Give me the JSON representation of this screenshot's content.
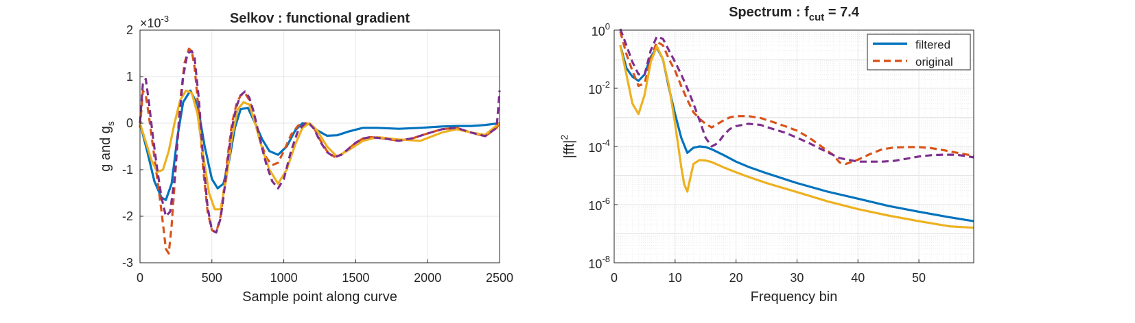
{
  "colors": {
    "blue": "#0072BD",
    "orange": "#D95319",
    "yellow": "#EDB120",
    "purple": "#7E2F8E",
    "grid": "#e6e6e6",
    "axis": "#262626"
  },
  "chart_data": [
    {
      "type": "line",
      "title": "Selkov : functional gradient",
      "xlabel": "Sample point along curve",
      "ylabel_main": "g and g",
      "ylabel_sub": "s",
      "exponent_base": "×10",
      "exponent_power": "-3",
      "xlim": [
        0,
        2500
      ],
      "ylim": [
        -3,
        2
      ],
      "xticks": [
        0,
        500,
        1000,
        1500,
        2000,
        2500
      ],
      "yticks": [
        -3,
        -2,
        -1,
        0,
        1,
        2
      ],
      "ytick_labels": [
        "-3",
        "-2",
        "-1",
        "0",
        "1",
        "2"
      ],
      "grid": true,
      "series": [
        {
          "color": "#0072BD",
          "dash": false,
          "x": [
            0,
            50,
            100,
            150,
            180,
            220,
            260,
            300,
            350,
            400,
            450,
            500,
            540,
            580,
            620,
            660,
            700,
            750,
            800,
            850,
            900,
            960,
            1020,
            1080,
            1130,
            1180,
            1230,
            1300,
            1370,
            1450,
            1550,
            1650,
            1800,
            1950,
            2100,
            2200,
            2300,
            2400,
            2500
          ],
          "y": [
            0,
            -0.6,
            -1.25,
            -1.6,
            -1.65,
            -1.3,
            -0.3,
            0.45,
            0.7,
            0.4,
            -0.5,
            -1.2,
            -1.4,
            -1.3,
            -0.8,
            -0.1,
            0.3,
            0.33,
            0,
            -0.35,
            -0.6,
            -0.68,
            -0.5,
            -0.15,
            0,
            -0.02,
            -0.15,
            -0.27,
            -0.26,
            -0.18,
            -0.1,
            -0.1,
            -0.12,
            -0.1,
            -0.07,
            -0.06,
            -0.06,
            -0.04,
            0
          ]
        },
        {
          "color": "#D95319",
          "dash": true,
          "x": [
            0,
            20,
            40,
            60,
            90,
            120,
            150,
            180,
            200,
            220,
            250,
            280,
            310,
            340,
            360,
            380,
            410,
            440,
            470,
            500,
            530,
            560,
            580,
            610,
            640,
            670,
            700,
            730,
            760,
            790,
            820,
            850,
            880,
            920,
            960,
            1000,
            1050,
            1100,
            1150,
            1180,
            1210,
            1250,
            1300,
            1350,
            1400,
            1450,
            1500,
            1550,
            1600,
            1700,
            1800,
            1900,
            2000,
            2100,
            2200,
            2300,
            2400,
            2480,
            2500
          ],
          "y": [
            -0.1,
            0.7,
            0.6,
            0.2,
            -0.5,
            -1.2,
            -1.9,
            -2.7,
            -2.8,
            -2.2,
            -0.9,
            0.5,
            1.3,
            1.6,
            1.55,
            1.2,
            0.2,
            -1,
            -1.9,
            -2.3,
            -2.35,
            -2,
            -1.5,
            -0.7,
            0,
            0.4,
            0.6,
            0.65,
            0.5,
            0.2,
            -0.2,
            -0.5,
            -0.75,
            -0.9,
            -0.85,
            -0.6,
            -0.25,
            -0.05,
            0,
            -0.02,
            -0.1,
            -0.35,
            -0.6,
            -0.72,
            -0.68,
            -0.55,
            -0.42,
            -0.33,
            -0.3,
            -0.33,
            -0.38,
            -0.32,
            -0.22,
            -0.13,
            -0.1,
            -0.2,
            -0.28,
            -0.1,
            0
          ]
        },
        {
          "color": "#EDB120",
          "dash": false,
          "x": [
            0,
            40,
            80,
            120,
            160,
            200,
            240,
            280,
            320,
            360,
            400,
            440,
            480,
            520,
            560,
            600,
            640,
            680,
            720,
            760,
            800,
            850,
            900,
            960,
            1020,
            1080,
            1130,
            1180,
            1230,
            1300,
            1370,
            1450,
            1550,
            1650,
            1800,
            1950,
            2100,
            2200,
            2300,
            2400,
            2500
          ],
          "y": [
            0,
            -0.4,
            -0.8,
            -1.05,
            -1.0,
            -0.6,
            0,
            0.5,
            0.7,
            0.65,
            0.2,
            -0.7,
            -1.5,
            -1.85,
            -1.85,
            -1.2,
            -0.3,
            0.3,
            0.45,
            0.4,
            0,
            -0.55,
            -1.0,
            -1.3,
            -1.0,
            -0.45,
            -0.1,
            0,
            -0.15,
            -0.5,
            -0.72,
            -0.58,
            -0.38,
            -0.3,
            -0.35,
            -0.38,
            -0.2,
            -0.13,
            -0.2,
            -0.25,
            0
          ]
        },
        {
          "color": "#7E2F8E",
          "dash": true,
          "x": [
            0,
            20,
            40,
            60,
            90,
            120,
            150,
            180,
            210,
            240,
            270,
            300,
            330,
            360,
            380,
            410,
            440,
            470,
            500,
            530,
            560,
            580,
            610,
            640,
            670,
            700,
            730,
            760,
            790,
            820,
            850,
            880,
            920,
            960,
            1000,
            1050,
            1100,
            1150,
            1180,
            1210,
            1250,
            1300,
            1350,
            1400,
            1450,
            1500,
            1550,
            1600,
            1700,
            1800,
            1900,
            2000,
            2100,
            2200,
            2300,
            2400,
            2480,
            2500
          ],
          "y": [
            0,
            0.85,
            0.95,
            0.5,
            -0.3,
            -1.0,
            -1.6,
            -2.0,
            -1.9,
            -1.2,
            0,
            1.0,
            1.5,
            1.55,
            1.4,
            0.5,
            -0.8,
            -1.8,
            -2.3,
            -2.35,
            -2.05,
            -1.6,
            -0.8,
            -0.1,
            0.35,
            0.6,
            0.68,
            0.55,
            0.25,
            -0.15,
            -0.55,
            -0.9,
            -1.25,
            -1.4,
            -1.2,
            -0.6,
            -0.15,
            0,
            -0.02,
            -0.12,
            -0.38,
            -0.62,
            -0.73,
            -0.68,
            -0.55,
            -0.42,
            -0.33,
            -0.3,
            -0.33,
            -0.38,
            -0.32,
            -0.22,
            -0.13,
            -0.1,
            -0.2,
            -0.28,
            -0.1,
            0.7
          ]
        }
      ]
    },
    {
      "type": "line",
      "title_prefix": "Spectrum : f",
      "title_sub": "cut",
      "title_suffix": " = 7.4",
      "xlabel": "Frequency bin",
      "ylabel_main": "|fft|",
      "ylabel_sup": "2",
      "xlim": [
        0,
        59
      ],
      "ylim": [
        1e-08,
        1
      ],
      "yscale": "log",
      "xticks": [
        0,
        10,
        20,
        30,
        40,
        50
      ],
      "yticks": [
        {
          "value": 1,
          "base": "10",
          "exp": "0"
        },
        {
          "value": 0.01,
          "base": "10",
          "exp": "-2"
        },
        {
          "value": 0.0001,
          "base": "10",
          "exp": "-4"
        },
        {
          "value": 1e-06,
          "base": "10",
          "exp": "-6"
        },
        {
          "value": 1e-08,
          "base": "10",
          "exp": "-8"
        }
      ],
      "grid": true,
      "minor_grid": true,
      "legend": {
        "position": "top-right",
        "entries": [
          {
            "label": "filtered",
            "color": "#0072BD",
            "dash": false
          },
          {
            "label": "original",
            "color": "#D95319",
            "dash": true
          }
        ]
      },
      "series": [
        {
          "name": "filtered",
          "color": "#0072BD",
          "dash": false,
          "x": [
            1,
            2,
            3,
            4,
            5,
            6,
            7,
            8,
            9,
            10,
            11,
            12,
            13,
            14,
            15,
            16,
            18,
            20,
            22,
            25,
            30,
            35,
            40,
            45,
            50,
            55,
            59
          ],
          "y": [
            0.3,
            0.05,
            0.025,
            0.018,
            0.03,
            0.12,
            0.25,
            0.1,
            0.01,
            0.0013,
            0.0002,
            6e-05,
            9e-05,
            0.0001,
            9.5e-05,
            8e-05,
            5e-05,
            3e-05,
            2e-05,
            1.2e-05,
            5.5e-06,
            2.8e-06,
            1.6e-06,
            9e-07,
            5.7e-07,
            3.7e-07,
            2.7e-07
          ]
        },
        {
          "name": "original",
          "color": "#D95319",
          "dash": true,
          "x": [
            1,
            2,
            3,
            4,
            5,
            6,
            7,
            8,
            9,
            10,
            11,
            12,
            13,
            14,
            15,
            16,
            17,
            18,
            19,
            20,
            22,
            24,
            26,
            28,
            30,
            32,
            34,
            36,
            37,
            38,
            40,
            42,
            44,
            46,
            48,
            50,
            52,
            54,
            56,
            58,
            59
          ],
          "y": [
            0.9,
            0.15,
            0.04,
            0.012,
            0.015,
            0.1,
            0.4,
            0.3,
            0.1,
            0.04,
            0.012,
            0.004,
            0.0015,
            0.0009,
            0.0006,
            0.00045,
            0.0006,
            0.0008,
            0.001,
            0.0011,
            0.0011,
            0.00095,
            0.0007,
            0.0005,
            0.00035,
            0.0002,
            0.0001,
            5e-05,
            2.8e-05,
            2.5e-05,
            3.5e-05,
            5.5e-05,
            8e-05,
            9.2e-05,
            9.5e-05,
            9.5e-05,
            8.8e-05,
            7.5e-05,
            6.2e-05,
            5.2e-05,
            5e-05
          ]
        },
        {
          "color": "#EDB120",
          "dash": false,
          "x": [
            1,
            2,
            3,
            4,
            5,
            6,
            7,
            8,
            9,
            10,
            11,
            11.5,
            12,
            13,
            14,
            15,
            16,
            18,
            20,
            22,
            25,
            30,
            35,
            40,
            45,
            50,
            55,
            59
          ],
          "y": [
            0.3,
            0.03,
            0.003,
            0.0013,
            0.006,
            0.08,
            0.28,
            0.1,
            0.012,
            0.0006,
            2e-05,
            5e-06,
            2.8e-06,
            2.5e-05,
            3.4e-05,
            3.3e-05,
            2.9e-05,
            1.9e-05,
            1.3e-05,
            9e-06,
            5.5e-06,
            2.7e-06,
            1.3e-06,
            7e-07,
            4.2e-07,
            2.7e-07,
            1.8e-07,
            1.6e-07
          ]
        },
        {
          "color": "#7E2F8E",
          "dash": true,
          "x": [
            1,
            2,
            3,
            4,
            5,
            6,
            7,
            8,
            9,
            10,
            11,
            12,
            13,
            14,
            15,
            16,
            17,
            18,
            19,
            20,
            22,
            24,
            26,
            28,
            30,
            32,
            34,
            36,
            37,
            38,
            39,
            40,
            42,
            44,
            46,
            48,
            50,
            52,
            54,
            56,
            58,
            59
          ],
          "y": [
            1.1,
            0.3,
            0.08,
            0.03,
            0.03,
            0.2,
            0.6,
            0.5,
            0.2,
            0.08,
            0.03,
            0.01,
            0.003,
            0.0008,
            0.0002,
            0.0001,
            0.00013,
            0.00025,
            0.0004,
            0.0005,
            0.0006,
            0.00055,
            0.0004,
            0.0003,
            0.0002,
            0.00013,
            8e-05,
            5e-05,
            4e-05,
            3.6e-05,
            3.3e-05,
            3e-05,
            3e-05,
            3e-05,
            3.2e-05,
            3.8e-05,
            4.5e-05,
            5e-05,
            5.2e-05,
            5.2e-05,
            4.6e-05,
            4.2e-05
          ]
        }
      ]
    }
  ]
}
